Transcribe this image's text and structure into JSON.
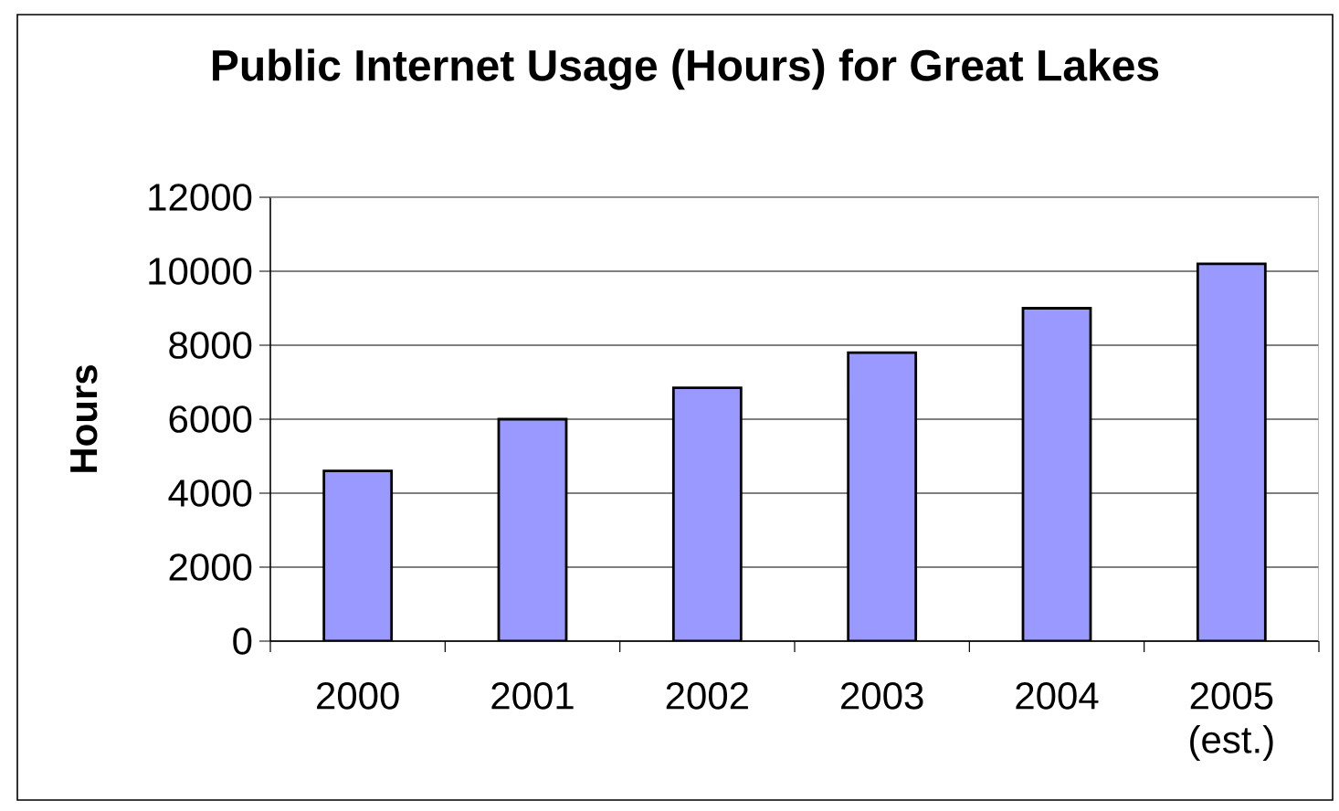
{
  "chart_data": {
    "type": "bar",
    "title": "Public Internet Usage (Hours) for Great Lakes",
    "ylabel": "Hours",
    "categories": [
      "2000",
      "2001",
      "2002",
      "2003",
      "2004",
      "2005 (est.)"
    ],
    "values": [
      4600,
      6000,
      6850,
      7800,
      9000,
      10200
    ],
    "color": "#9999ff",
    "ylim": [
      0,
      12000
    ],
    "yticks": [
      0,
      2000,
      4000,
      6000,
      8000,
      10000,
      12000
    ],
    "grid": "y"
  }
}
